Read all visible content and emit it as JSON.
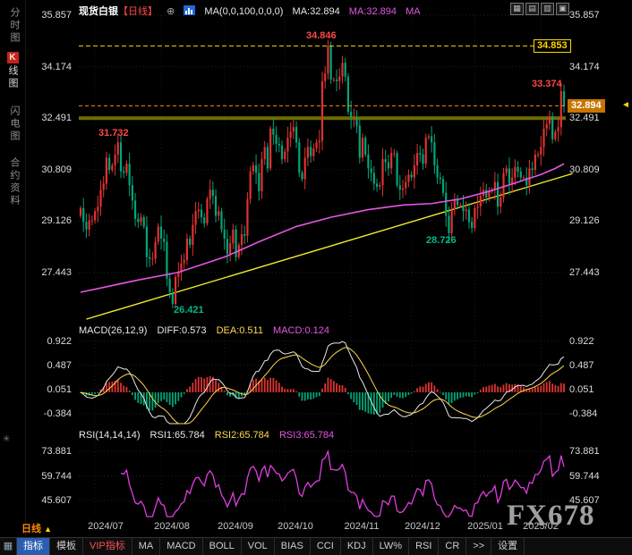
{
  "header": {
    "symbol": "现货白银",
    "period": "【日线】",
    "plus_icon": "⊕",
    "ma_settings": "MA(0,0,100,0,0,0)",
    "ma_value_1": "MA:32.894",
    "ma_value_2": "MA:32.894",
    "ma_value_3": "MA"
  },
  "window_icons": [
    "▦",
    "▤",
    "▥",
    "▣"
  ],
  "sidebar": {
    "items": [
      {
        "label": "分时图"
      },
      {
        "label": "线图",
        "badge": "K"
      },
      {
        "label": "闪电图"
      },
      {
        "label": "合约资料"
      }
    ],
    "tool_icon": "✳"
  },
  "main_axis": {
    "ticks": [
      "35.857",
      "34.174",
      "32.491",
      "30.809",
      "29.126",
      "27.443"
    ]
  },
  "annotations": {
    "oct_high": "34.846",
    "ref_high": "34.853",
    "jul_high": "31.732",
    "feb_high": "33.374",
    "current_price": "32.894",
    "price_arrow": "◄",
    "dec_low": "28.726",
    "aug_low": "26.421"
  },
  "macd_panel": {
    "title": "MACD(26,12,9)",
    "diff_label": "DIFF:0.573",
    "dea_label": "DEA:0.511",
    "macd_label": "MACD:0.124",
    "ticks": [
      "0.922",
      "0.487",
      "0.051",
      "-0.384"
    ]
  },
  "rsi_panel": {
    "title": "RSI(14,14,14)",
    "rsi1_label": "RSI1:65.784",
    "rsi2_label": "RSI2:65.784",
    "rsi3_label": "RSI3:65.784",
    "ticks": [
      "73.881",
      "59.744",
      "45.607"
    ]
  },
  "xaxis": {
    "period_label": "日线",
    "period_arrow": "▲",
    "ticks": [
      "2024/07",
      "2024/08",
      "2024/09",
      "2024/10",
      "2024/11",
      "2024/12",
      "2025/01",
      "2025/02"
    ]
  },
  "watermark": "FX678",
  "toolbar": {
    "items": [
      "指标",
      "模板",
      "VIP指标",
      "MA",
      "MACD",
      "BOLL",
      "VOL",
      "BIAS",
      "CCI",
      "KDJ",
      "LW%",
      "RSI",
      "CR",
      ">>",
      "设置"
    ]
  },
  "chart_data": {
    "type": "candlestick",
    "title": "现货白银 日线 (Spot Silver, daily)",
    "ylim": [
      25.5,
      35.857
    ],
    "price_ticks": [
      35.857,
      34.174,
      32.491,
      30.809,
      29.126,
      27.443
    ],
    "closes": [
      29.55,
      29.1,
      28.85,
      29.15,
      29.15,
      29.45,
      29.6,
      30.15,
      30.35,
      31.2,
      30.8,
      30.95,
      31.3,
      31.7,
      30.75,
      30.7,
      31.0,
      30.3,
      29.8,
      29.2,
      29.1,
      29.25,
      28.95,
      27.95,
      27.9,
      27.9,
      28.45,
      28.95,
      28.55,
      28.45,
      27.25,
      26.8,
      26.42,
      27.3,
      27.45,
      27.75,
      27.85,
      28.55,
      28.35,
      29.0,
      29.45,
      29.5,
      29.25,
      29.05,
      29.85,
      30.15,
      29.95,
      29.3,
      29.45,
      28.85,
      28.55,
      28.05,
      28.4,
      28.85,
      27.95,
      28.35,
      28.7,
      28.65,
      29.85,
      30.75,
      30.95,
      30.7,
      30.1,
      31.15,
      31.55,
      30.85,
      32.15,
      31.95,
      31.65,
      31.6,
      31.15,
      31.4,
      31.85,
      32.05,
      32.2,
      31.7,
      30.7,
      30.5,
      31.2,
      31.55,
      31.25,
      31.5,
      31.7,
      31.75,
      33.7,
      33.95,
      34.85,
      33.75,
      33.75,
      33.7,
      33.85,
      34.3,
      33.85,
      32.7,
      32.5,
      32.5,
      32.25,
      31.2,
      31.85,
      31.3,
      30.85,
      30.7,
      30.35,
      30.25,
      30.3,
      31.15,
      31.05,
      30.85,
      31.35,
      31.35,
      30.3,
      30.15,
      30.2,
      30.4,
      30.65,
      30.55,
      30.95,
      31.35,
      31.3,
      31.0,
      31.85,
      31.9,
      31.7,
      30.95,
      30.55,
      30.5,
      30.05,
      29.3,
      28.73,
      29.5,
      29.85,
      29.65,
      29.65,
      29.45,
      29.5,
      29.1,
      28.9,
      29.55,
      29.6,
      29.95,
      30.15,
      29.9,
      30.1,
      30.15,
      30.4,
      29.6,
      29.9,
      30.7,
      30.85,
      30.35,
      30.55,
      30.9,
      30.75,
      30.55,
      30.55,
      30.3,
      30.85,
      30.8,
      31.3,
      31.3,
      31.55,
      32.15,
      32.3,
      32.55,
      31.8,
      32.05,
      32.2,
      33.37,
      32.89
    ],
    "month_ticks": [
      {
        "label": "2024/07",
        "index": 5
      },
      {
        "label": "2024/08",
        "index": 28
      },
      {
        "label": "2024/09",
        "index": 50
      },
      {
        "label": "2024/10",
        "index": 71
      },
      {
        "label": "2024/11",
        "index": 94
      },
      {
        "label": "2024/12",
        "index": 115
      },
      {
        "label": "2025/01",
        "index": 137
      },
      {
        "label": "2025/02",
        "index": 160
      }
    ],
    "ma100_anchors": [
      [
        0,
        26.8
      ],
      [
        10,
        27.0
      ],
      [
        20,
        27.2
      ],
      [
        34,
        27.45
      ],
      [
        50,
        27.95
      ],
      [
        62,
        28.45
      ],
      [
        75,
        28.95
      ],
      [
        87,
        29.25
      ],
      [
        100,
        29.5
      ],
      [
        112,
        29.65
      ],
      [
        122,
        29.7
      ],
      [
        132,
        29.85
      ],
      [
        142,
        30.1
      ],
      [
        152,
        30.4
      ],
      [
        160,
        30.65
      ],
      [
        165,
        30.85
      ],
      [
        168,
        31.0
      ]
    ],
    "trendline": {
      "x1": 2,
      "p1": 25.92,
      "x2": 171,
      "p2": 30.68
    },
    "ref_line_high": 34.853,
    "current_price": 32.894,
    "band_price": 32.491,
    "highs": {
      "oct": 34.846,
      "jul": 31.732,
      "feb": 33.374
    },
    "lows": {
      "aug": 26.421,
      "dec": 28.726
    },
    "macd": {
      "fast": 12,
      "slow": 26,
      "signal": 9,
      "diff": 0.573,
      "dea": 0.511,
      "macd": 0.124,
      "ticks": [
        0.922,
        0.487,
        0.051,
        -0.384
      ]
    },
    "rsi": {
      "period": 14,
      "rsi1": 65.784,
      "rsi2": 65.784,
      "rsi3": 65.784,
      "ticks": [
        73.881,
        59.744,
        45.607
      ]
    }
  }
}
